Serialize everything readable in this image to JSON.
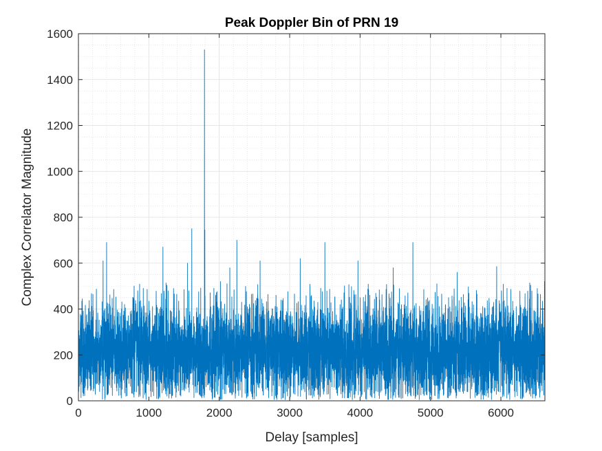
{
  "chart_data": {
    "type": "line",
    "title": "Peak Doppler Bin of PRN 19",
    "xlabel": "Delay [samples]",
    "ylabel": "Complex Correlator Magnitude",
    "xlim": [
      0,
      6625
    ],
    "ylim": [
      0,
      1600
    ],
    "xticks": [
      0,
      1000,
      2000,
      3000,
      4000,
      5000,
      6000
    ],
    "yticks": [
      0,
      200,
      400,
      600,
      800,
      1000,
      1200,
      1400,
      1600
    ],
    "grid": true,
    "minor_grid": true,
    "line_color": "#0072BD",
    "series": [
      {
        "n_samples": 6625,
        "noise_mean": 215,
        "noise_std": 105,
        "peaks": [
          {
            "x": 1790,
            "y": 1530
          },
          {
            "x": 1610,
            "y": 750
          },
          {
            "x": 1795,
            "y": 745
          },
          {
            "x": 2250,
            "y": 700
          },
          {
            "x": 400,
            "y": 690
          },
          {
            "x": 3500,
            "y": 690
          },
          {
            "x": 4750,
            "y": 690
          },
          {
            "x": 1200,
            "y": 670
          },
          {
            "x": 3150,
            "y": 620
          },
          {
            "x": 350,
            "y": 610
          },
          {
            "x": 2580,
            "y": 610
          },
          {
            "x": 3970,
            "y": 610
          },
          {
            "x": 1550,
            "y": 600
          },
          {
            "x": 5940,
            "y": 585
          },
          {
            "x": 2150,
            "y": 580
          },
          {
            "x": 4470,
            "y": 580
          },
          {
            "x": 5380,
            "y": 560
          },
          {
            "x": 6620,
            "y": 520
          }
        ]
      }
    ]
  }
}
